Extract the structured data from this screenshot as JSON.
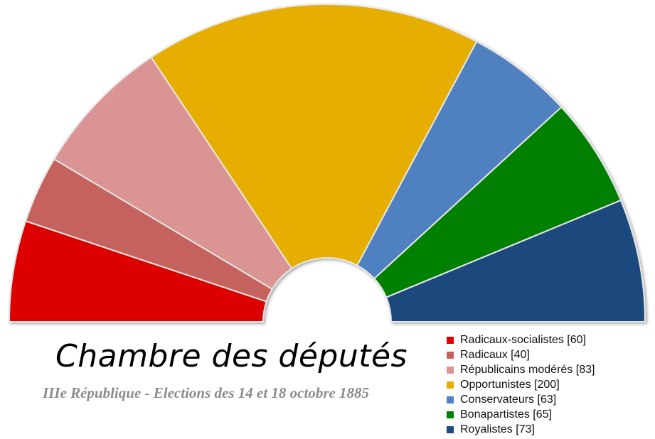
{
  "chart_data": {
    "type": "pie",
    "variant": "parliament-semicircle",
    "title": "Chambre des députés",
    "subtitle": "IIIe République - Elections des 14 et 18 octobre 1885",
    "legend_position": "bottom-right",
    "categories": [
      "Radicaux-socialistes",
      "Radicaux",
      "Républicains modérés",
      "Opportunistes",
      "Conservateurs",
      "Bonapartistes",
      "Royalistes"
    ],
    "values": [
      60,
      40,
      83,
      200,
      63,
      65,
      73
    ],
    "labels": [
      "Radicaux-socialistes [60]",
      "Radicaux [40]",
      "Républicains modérés [83]",
      "Opportunistes [200]",
      "Conservateurs [63]",
      "Bonapartistes [65]",
      "Royalistes [73]"
    ],
    "colors": [
      "#dd0000",
      "#c6625d",
      "#d99493",
      "#e5ae00",
      "#5080bf",
      "#008000",
      "#1f497d"
    ]
  }
}
